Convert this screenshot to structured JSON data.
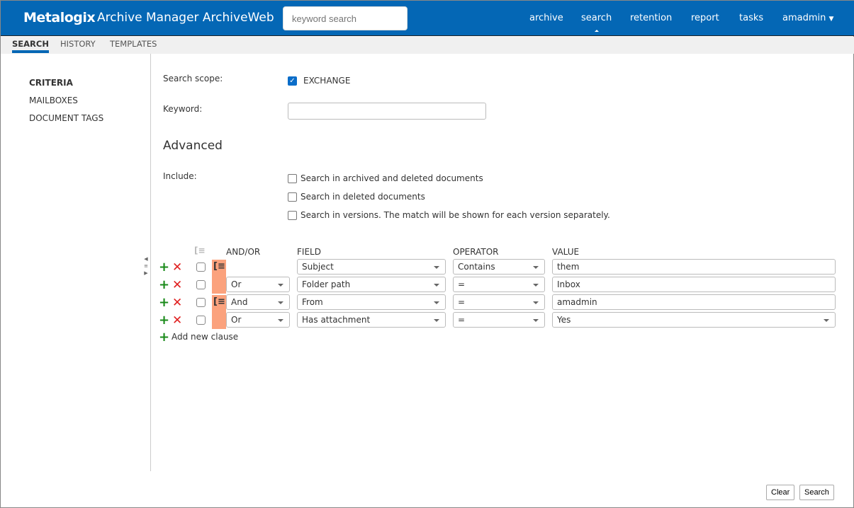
{
  "header": {
    "logo": "Metalogix",
    "title": "Archive Manager ArchiveWeb",
    "search_placeholder": "keyword search",
    "nav": [
      "archive",
      "search",
      "retention",
      "report",
      "tasks",
      "amadmin"
    ]
  },
  "tabs": [
    "SEARCH",
    "HISTORY",
    "TEMPLATES"
  ],
  "sidebar": [
    "CRITERIA",
    "MAILBOXES",
    "DOCUMENT TAGS"
  ],
  "form": {
    "scope_label": "Search scope:",
    "scope_value": "EXCHANGE",
    "scope_checked": true,
    "keyword_label": "Keyword:",
    "keyword_value": "",
    "advanced": "Advanced",
    "include_label": "Include:",
    "include": [
      "Search in archived and deleted documents",
      "Search in deleted documents",
      "Search in versions. The match will be shown for each version separately."
    ]
  },
  "clauses": {
    "headers": [
      "AND/OR",
      "FIELD",
      "OPERATOR",
      "VALUE"
    ],
    "rows": [
      {
        "andor": "",
        "field": "Subject",
        "operator": "Contains",
        "value": "them"
      },
      {
        "andor": "Or",
        "field": "Folder path",
        "operator": "=",
        "value": "Inbox"
      },
      {
        "andor": "And",
        "field": "From",
        "operator": "=",
        "value": "amadmin"
      },
      {
        "andor": "Or",
        "field": "Has attachment",
        "operator": "=",
        "value": "Yes"
      }
    ],
    "add": "Add new clause",
    "group_color": "#fba27d"
  },
  "footer": {
    "clear": "Clear",
    "search": "Search"
  }
}
